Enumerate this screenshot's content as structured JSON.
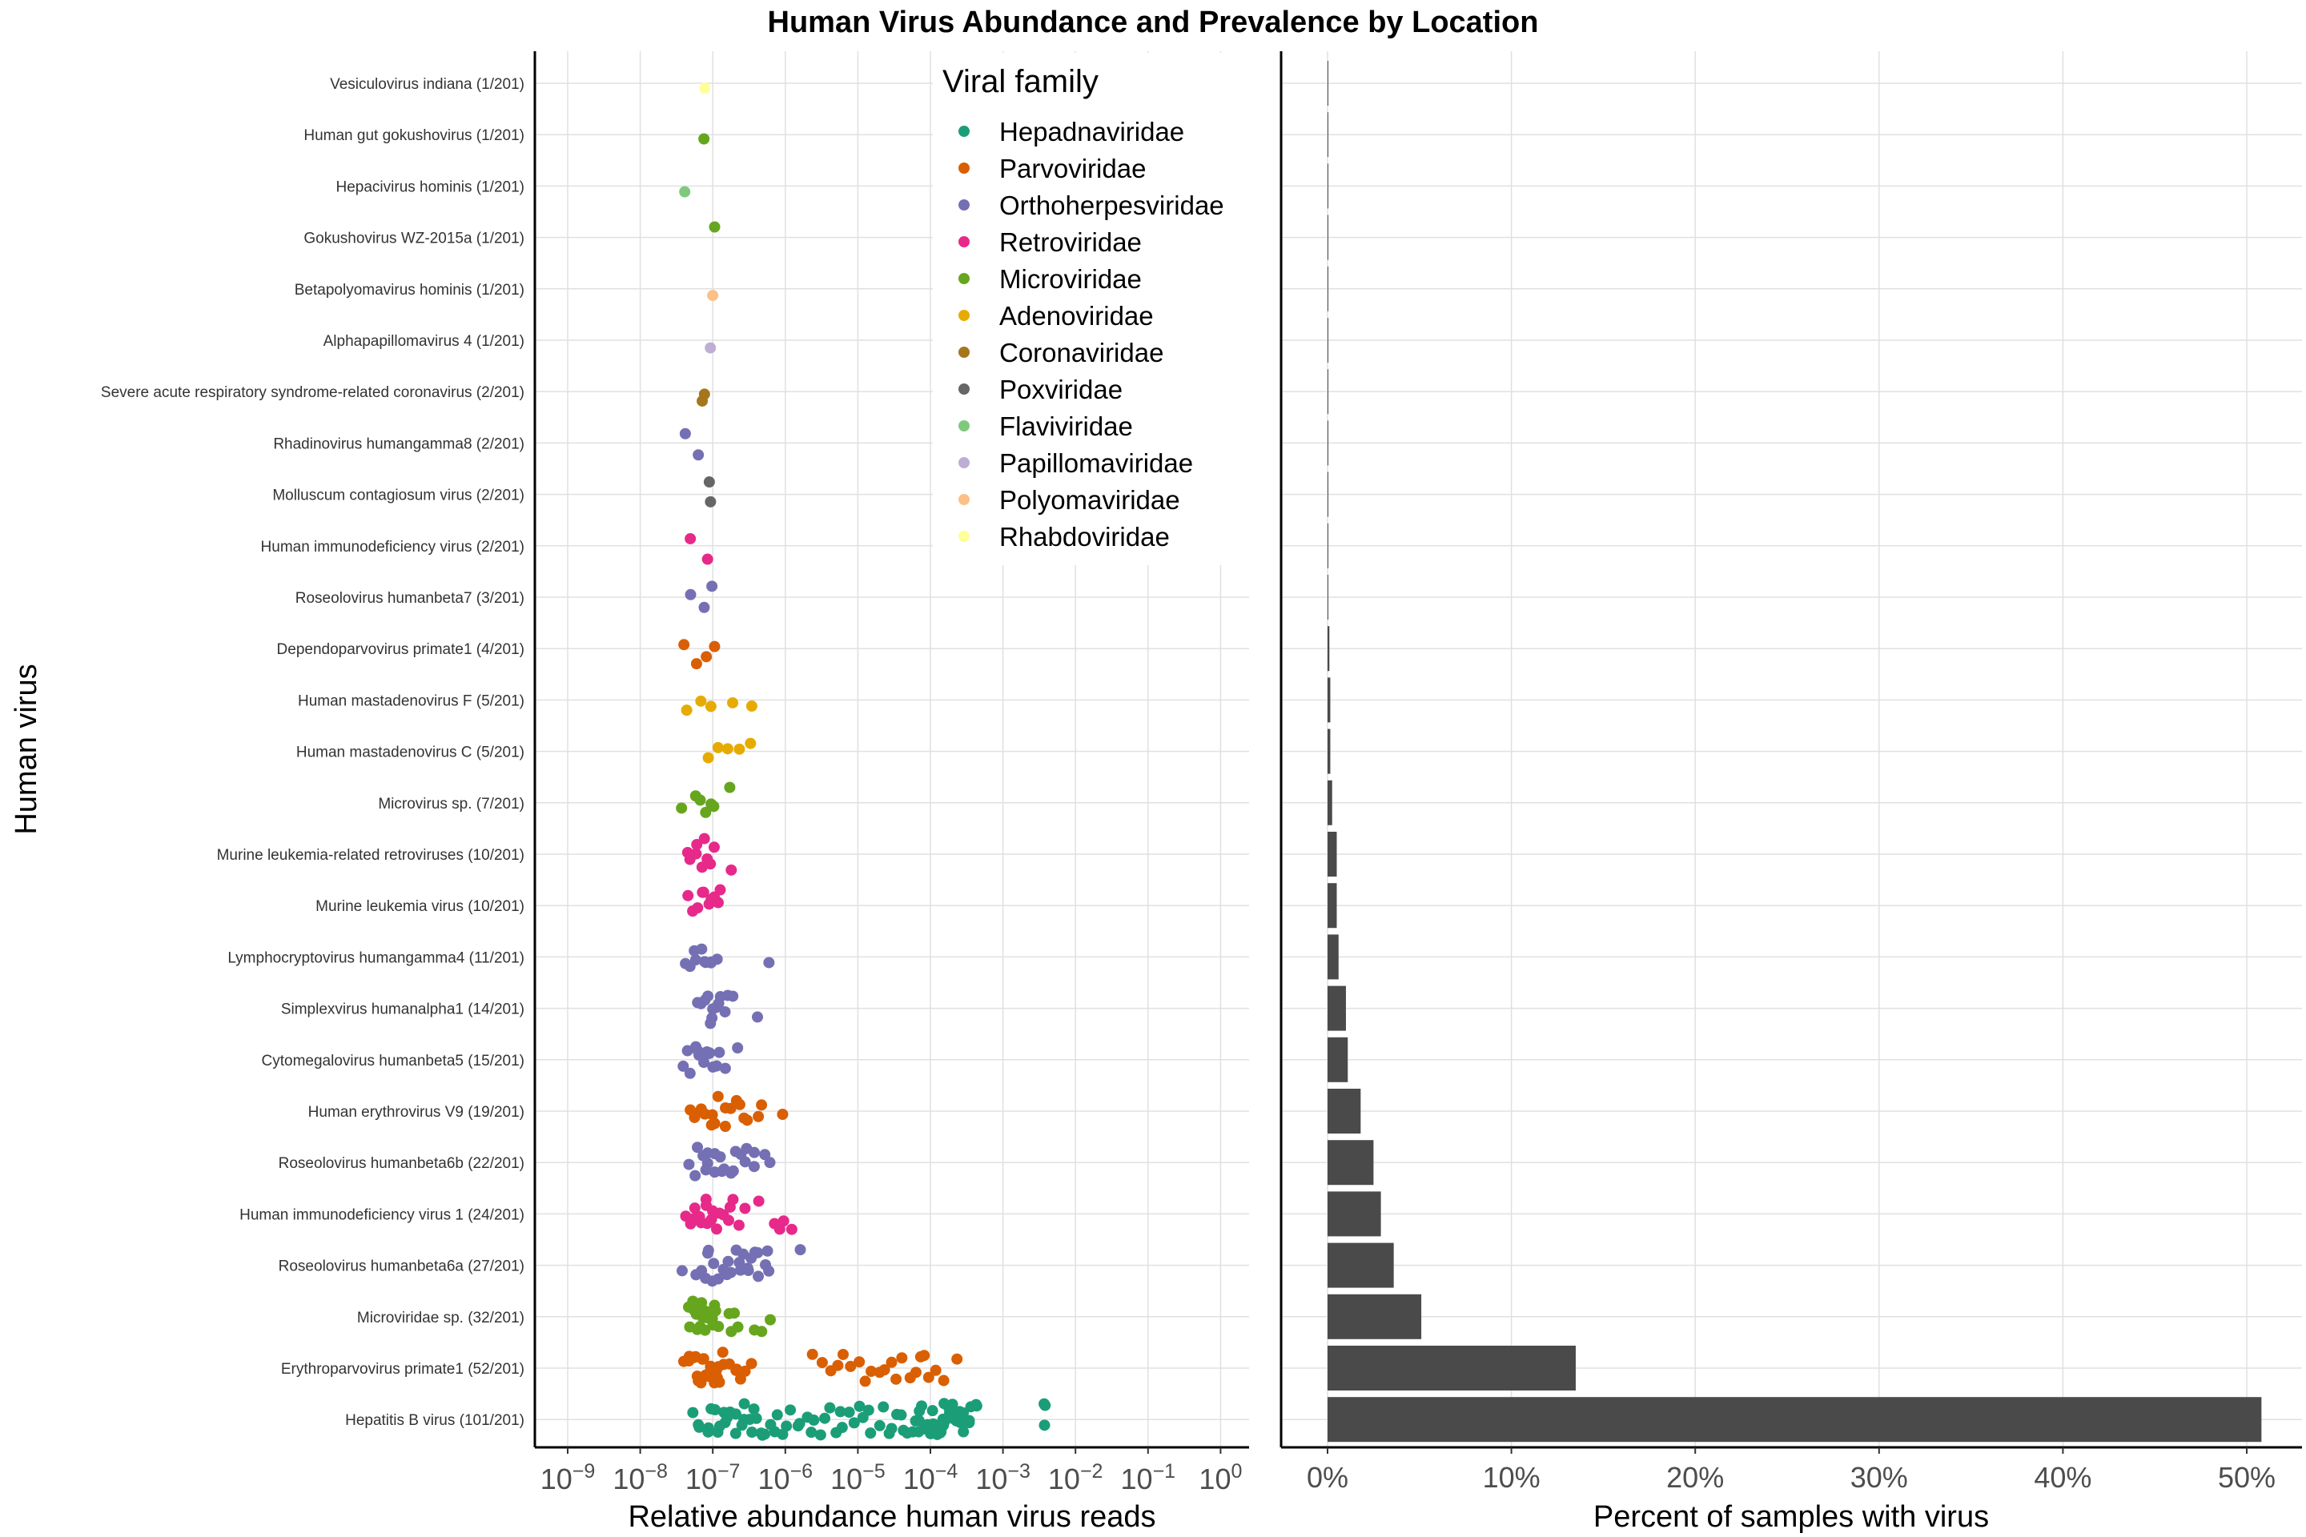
{
  "title": "Human Virus Abundance and Prevalence by Location",
  "colors": {
    "Hepadnaviridae": "#1b9e77",
    "Parvoviridae": "#d95f02",
    "Orthoherpesviridae": "#7570b3",
    "Retroviridae": "#e7298a",
    "Microviridae": "#66a61e",
    "Adenoviridae": "#e6ab02",
    "Coronaviridae": "#a6761d",
    "Poxviridae": "#666666",
    "Flaviviridae": "#7fc97f",
    "Papillomaviridae": "#beaed4",
    "Polyomaviridae": "#fdc086",
    "Rhabdoviridae": "#ffff99",
    "bar": "#4a4a4a",
    "grid": "#e0e0e0"
  },
  "chart_data": [
    {
      "type": "scatter",
      "xlabel": "Relative abundance human virus reads",
      "ylabel": "Human virus",
      "xscale": "log10",
      "xlim": [
        1e-09,
        1
      ],
      "xticks": [
        "10^-9",
        "10^-8",
        "10^-7",
        "10^-6",
        "10^-5",
        "10^-4",
        "10^-3",
        "10^-2",
        "10^-1",
        "10^0"
      ],
      "grid": true,
      "legend": {
        "title": "Viral family",
        "placement": "top-right",
        "entries": [
          "Hepadnaviridae",
          "Parvoviridae",
          "Orthoherpesviridae",
          "Retroviridae",
          "Microviridae",
          "Adenoviridae",
          "Coronaviridae",
          "Poxviridae",
          "Flaviviridae",
          "Papillomaviridae",
          "Polyomaviridae",
          "Rhabdoviridae"
        ]
      },
      "rows": [
        {
          "label": "Vesiculovirus indiana (1/201)",
          "family": "Rhabdoviridae",
          "values": [
            8e-08
          ]
        },
        {
          "label": "Human gut gokushovirus (1/201)",
          "family": "Microviridae",
          "values": [
            7e-08
          ]
        },
        {
          "label": "Hepacivirus hominis (1/201)",
          "family": "Flaviviridae",
          "values": [
            4e-08
          ]
        },
        {
          "label": "Gokushovirus WZ-2015a (1/201)",
          "family": "Microviridae",
          "values": [
            1e-07
          ]
        },
        {
          "label": "Betapolyomavirus hominis (1/201)",
          "family": "Polyomaviridae",
          "values": [
            9.5e-08
          ]
        },
        {
          "label": "Alphapapillomavirus 4 (1/201)",
          "family": "Papillomaviridae",
          "values": [
            9.5e-08
          ]
        },
        {
          "label": "Severe acute respiratory syndrome-related coronavirus (2/201)",
          "family": "Coronaviridae",
          "values": [
            7.5e-08,
            8e-08
          ]
        },
        {
          "label": "Rhadinovirus humangamma8 (2/201)",
          "family": "Orthoherpesviridae",
          "values": [
            4e-08,
            6e-08
          ]
        },
        {
          "label": "Molluscum contagiosum virus (2/201)",
          "family": "Poxviridae",
          "values": [
            9e-08,
            9.5e-08
          ]
        },
        {
          "label": "Human immunodeficiency virus (2/201)",
          "family": "Retroviridae",
          "values": [
            5e-08,
            8e-08
          ]
        },
        {
          "label": "Roseolovirus humanbeta7 (3/201)",
          "family": "Orthoherpesviridae",
          "values": [
            5e-08,
            8e-08,
            1e-07
          ]
        },
        {
          "label": "Dependoparvovirus primate1 (4/201)",
          "family": "Parvoviridae",
          "values": [
            4e-08,
            6e-08,
            8.5e-08,
            1e-07
          ]
        },
        {
          "label": "Human mastadenovirus F (5/201)",
          "family": "Adenoviridae",
          "values": [
            4.5e-08,
            6.5e-08,
            1e-07,
            2e-07,
            3.5e-07
          ]
        },
        {
          "label": "Human mastadenovirus C (5/201)",
          "family": "Adenoviridae",
          "values": [
            9e-08,
            1.2e-07,
            1.5e-07,
            2.5e-07,
            3.5e-07
          ]
        },
        {
          "label": "Microvirus sp. (7/201)",
          "family": "Microviridae",
          "values": [
            4e-08,
            6e-08,
            7e-08,
            8e-08,
            9e-08,
            1e-07,
            1.7e-07
          ]
        },
        {
          "label": "Murine leukemia-related retroviruses (10/201)",
          "family": "Retroviridae",
          "values": [
            4.5e-08,
            5e-08,
            5.5e-08,
            6e-08,
            7e-08,
            7.5e-08,
            8.5e-08,
            9e-08,
            1e-07,
            1.8e-07
          ]
        },
        {
          "label": "Murine leukemia virus (10/201)",
          "family": "Retroviridae",
          "values": [
            4.5e-08,
            5e-08,
            6e-08,
            7e-08,
            7.5e-08,
            8.5e-08,
            9e-08,
            1e-07,
            1.2e-07,
            1.3e-07
          ]
        },
        {
          "label": "Lymphocryptovirus humangamma4 (11/201)",
          "family": "Orthoherpesviridae",
          "values": [
            4e-08,
            4.5e-08,
            5.5e-08,
            6e-08,
            7e-08,
            7.5e-08,
            8e-08,
            9e-08,
            1e-07,
            1.2e-07,
            6e-07
          ]
        },
        {
          "label": "Simplexvirus humanalpha1 (14/201)",
          "family": "Orthoherpesviridae",
          "values": [
            6e-08,
            7e-08,
            8e-08,
            8.5e-08,
            9e-08,
            9.5e-08,
            1e-07,
            1.1e-07,
            1.2e-07,
            1.3e-07,
            1.5e-07,
            1.7e-07,
            2e-07,
            4e-07
          ]
        },
        {
          "label": "Cytomegalovirus humanbeta5 (15/201)",
          "family": "Orthoherpesviridae",
          "values": [
            4e-08,
            4.5e-08,
            5e-08,
            5.5e-08,
            6e-08,
            6.5e-08,
            7e-08,
            8e-08,
            8.5e-08,
            9e-08,
            1e-07,
            1.1e-07,
            1.3e-07,
            1.6e-07,
            2.2e-07
          ]
        },
        {
          "label": "Human erythrovirus V9 (19/201)",
          "family": "Parvoviridae",
          "values": [
            5e-08,
            5.5e-08,
            6e-08,
            7e-08,
            8e-08,
            9e-08,
            1e-07,
            1.1e-07,
            1.2e-07,
            1.4e-07,
            1.6e-07,
            1.8e-07,
            2e-07,
            2.2e-07,
            2.5e-07,
            3e-07,
            4e-07,
            4.5e-07,
            9e-07
          ]
        },
        {
          "label": "Roseolovirus humanbeta6b (22/201)",
          "family": "Orthoherpesviridae",
          "values": [
            5e-08,
            5.5e-08,
            6e-08,
            7e-08,
            7.5e-08,
            8e-08,
            9e-08,
            1e-07,
            1.1e-07,
            1.2e-07,
            1.3e-07,
            1.5e-07,
            1.7e-07,
            2e-07,
            2.2e-07,
            2.5e-07,
            2.8e-07,
            3e-07,
            3.5e-07,
            4e-07,
            5e-07,
            6e-07
          ]
        },
        {
          "label": "Human immunodeficiency virus 1 (24/201)",
          "family": "Retroviridae",
          "values": [
            4.5e-08,
            5e-08,
            5.5e-08,
            6e-08,
            6.5e-08,
            7e-08,
            7.5e-08,
            8e-08,
            8.5e-08,
            9e-08,
            1e-07,
            1.1e-07,
            1.2e-07,
            1.4e-07,
            1.6e-07,
            1.8e-07,
            2e-07,
            2.3e-07,
            3e-07,
            4e-07,
            7e-07,
            8e-07,
            9e-07,
            1.2e-06
          ]
        },
        {
          "label": "Roseolovirus humanbeta6a (27/201)",
          "family": "Orthoherpesviridae",
          "values": [
            4e-08,
            6e-08,
            7e-08,
            8e-08,
            8.5e-08,
            9e-08,
            1e-07,
            1.1e-07,
            1.2e-07,
            1.3e-07,
            1.5e-07,
            1.7e-07,
            1.9e-07,
            2e-07,
            2.2e-07,
            2.5e-07,
            2.8e-07,
            3e-07,
            3.3e-07,
            3.5e-07,
            4e-07,
            4.3e-07,
            4.5e-07,
            5e-07,
            5.5e-07,
            6e-07,
            1.7e-06
          ]
        },
        {
          "label": "Microviridae sp. (32/201)",
          "family": "Microviridae",
          "values": [
            4.5e-08,
            4.7e-08,
            5e-08,
            5.2e-08,
            5.5e-08,
            5.7e-08,
            6e-08,
            6.2e-08,
            6.5e-08,
            6.8e-08,
            7e-08,
            7.3e-08,
            7.5e-08,
            7.8e-08,
            8e-08,
            8.3e-08,
            8.5e-08,
            8.8e-08,
            9e-08,
            9.3e-08,
            9.5e-08,
            1e-07,
            1.05e-07,
            1.1e-07,
            1.2e-07,
            1.6e-07,
            1.8e-07,
            2e-07,
            2.2e-07,
            3.5e-07,
            5e-07,
            6e-07
          ]
        },
        {
          "label": "Erythroparvovirus primate1 (52/201)",
          "family": "Parvoviridae",
          "values": [
            4e-08,
            4.5e-08,
            5e-08,
            5.5e-08,
            6e-08,
            6.3e-08,
            6.6e-08,
            7e-08,
            7.3e-08,
            7.6e-08,
            8e-08,
            8.3e-08,
            8.6e-08,
            9e-08,
            9.3e-08,
            9.6e-08,
            1e-07,
            1.05e-07,
            1.1e-07,
            1.15e-07,
            1.2e-07,
            1.3e-07,
            1.4e-07,
            1.5e-07,
            1.7e-07,
            2e-07,
            2.3e-07,
            2.6e-07,
            3e-07,
            3.5e-07,
            2.5e-06,
            3e-06,
            4e-06,
            5e-06,
            6e-06,
            8e-06,
            1e-05,
            1.3e-05,
            1.6e-05,
            2e-05,
            2.5e-05,
            3e-05,
            3.5e-05,
            4e-05,
            5e-05,
            6e-05,
            7e-05,
            8e-05,
            0.0001,
            0.00012,
            0.00015,
            0.00022
          ]
        },
        {
          "label": "Hepatitis B virus (101/201)",
          "family": "Hepadnaviridae",
          "values": [
            5e-08,
            6e-08,
            7e-08,
            8e-08,
            9e-08,
            1e-07,
            1.1e-07,
            1.2e-07,
            1.3e-07,
            1.4e-07,
            1.5e-07,
            1.6e-07,
            1.8e-07,
            2e-07,
            2.2e-07,
            2.4e-07,
            2.6e-07,
            2.8e-07,
            3e-07,
            3.3e-07,
            3.6e-07,
            4e-07,
            4.5e-07,
            5e-07,
            5.5e-07,
            6e-07,
            7e-07,
            8e-07,
            9e-07,
            1e-06,
            1.2e-06,
            1.4e-06,
            1.6e-06,
            1.9e-06,
            2.2e-06,
            2.6e-06,
            3e-06,
            3.5e-06,
            4e-06,
            4.7e-06,
            5.5e-06,
            6.5e-06,
            7.5e-06,
            9e-06,
            1.05e-05,
            1.2e-05,
            1.4e-05,
            1.6e-05,
            1.9e-05,
            2.2e-05,
            2.6e-05,
            3e-05,
            3.5e-05,
            4e-05,
            4.5e-05,
            5e-05,
            5.5e-05,
            6e-05,
            6.5e-05,
            7e-05,
            7.5e-05,
            8e-05,
            8.5e-05,
            9e-05,
            9.5e-05,
            0.0001,
            0.000105,
            0.00011,
            0.000115,
            0.00012,
            0.000125,
            0.00013,
            0.000135,
            0.00014,
            0.000145,
            0.00015,
            0.000155,
            0.00016,
            0.000165,
            0.00017,
            0.000175,
            0.00018,
            0.00019,
            0.0002,
            0.00021,
            0.00022,
            0.00023,
            0.00024,
            0.00025,
            0.00026,
            0.00027,
            0.00028,
            0.0003,
            0.00032,
            0.00034,
            0.00036,
            0.0004,
            0.00045,
            0.0036,
            0.0038,
            0.004
          ]
        }
      ]
    },
    {
      "type": "bar",
      "orientation": "horizontal",
      "xlabel": "Percent of samples with virus",
      "xlim": [
        0,
        52
      ],
      "xticks": [
        "0%",
        "10%",
        "20%",
        "30%",
        "40%",
        "50%"
      ],
      "grid": true,
      "categories": [
        "Vesiculovirus indiana",
        "Human gut gokushovirus",
        "Hepacivirus hominis",
        "Gokushovirus WZ-2015a",
        "Betapolyomavirus hominis",
        "Alphapapillomavirus 4",
        "Severe acute respiratory syndrome-related coronavirus",
        "Rhadinovirus humangamma8",
        "Molluscum contagiosum virus",
        "Human immunodeficiency virus",
        "Roseolovirus humanbeta7",
        "Dependoparvovirus primate1",
        "Human mastadenovirus F",
        "Human mastadenovirus C",
        "Microvirus sp.",
        "Murine leukemia-related retroviruses",
        "Murine leukemia virus",
        "Lymphocryptovirus humangamma4",
        "Simplexvirus humanalpha1",
        "Cytomegalovirus humanbeta5",
        "Human erythrovirus V9",
        "Roseolovirus humanbeta6b",
        "Human immunodeficiency virus 1",
        "Roseolovirus humanbeta6a",
        "Microviridae sp.",
        "Erythroparvovirus primate1",
        "Hepatitis B virus"
      ],
      "values": [
        0.01,
        0.01,
        0.01,
        0.01,
        0.01,
        0.01,
        0.02,
        0.02,
        0.02,
        0.02,
        0.03,
        0.1,
        0.15,
        0.15,
        0.25,
        0.5,
        0.5,
        0.6,
        1.0,
        1.1,
        1.8,
        2.5,
        2.9,
        3.6,
        5.1,
        13.5,
        50.8
      ]
    }
  ]
}
